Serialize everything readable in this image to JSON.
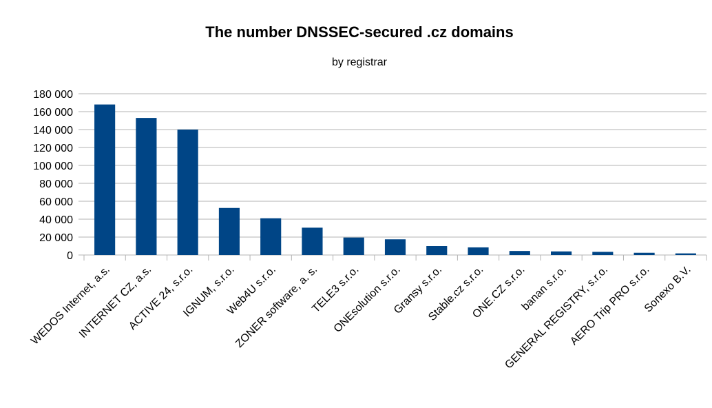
{
  "chart_data": {
    "type": "bar",
    "title": "The number DNSSEC-secured .cz domains",
    "subtitle": "by registrar",
    "xlabel": "",
    "ylabel": "",
    "ylim": [
      0,
      180000
    ],
    "yticks": [
      0,
      20000,
      40000,
      60000,
      80000,
      100000,
      120000,
      140000,
      160000,
      180000
    ],
    "ytick_labels": [
      "0",
      "20 000",
      "40 000",
      "60 000",
      "80 000",
      "100 000",
      "120 000",
      "140 000",
      "160 000",
      "180 000"
    ],
    "grid": true,
    "legend": "none",
    "bar_color": "#004586",
    "categories": [
      "WEDOS Internet, a.s.",
      "INTERNET CZ, a.s.",
      "ACTIVE 24, s.r.o.",
      "IGNUM, s.r.o.",
      "Web4U s.r.o.",
      "ZONER software, a. s.",
      "TELE3 s.r.o.",
      "ONEsolution s.r.o.",
      "Gransy s.r.o.",
      "Stable.cz s.r.o.",
      "ONE.CZ s.r.o.",
      "banan s.r.o.",
      "GENERAL REGISTRY, s.r.o.",
      "AERO Trip PRO s.r.o.",
      "Sonexo B.V."
    ],
    "values": [
      168000,
      153000,
      140000,
      52500,
      41000,
      30500,
      19500,
      17500,
      10000,
      8500,
      4500,
      4000,
      3500,
      2500,
      1800
    ]
  }
}
